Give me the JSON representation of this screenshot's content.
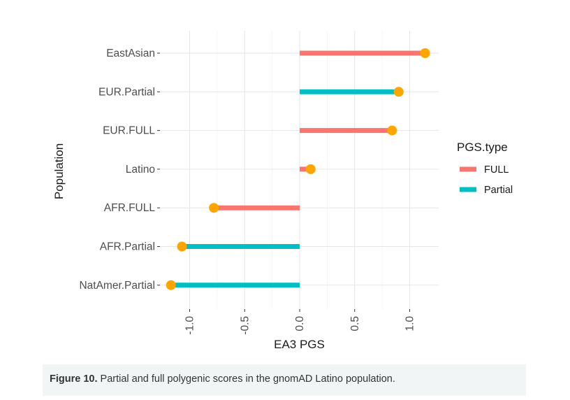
{
  "chart_data": {
    "type": "lollipop",
    "xlabel": "EA3 PGS",
    "ylabel": "Population",
    "xlim": [
      -1.25,
      1.25
    ],
    "xticks": [
      -1.0,
      -0.5,
      0.0,
      0.5,
      1.0
    ],
    "xtick_labels": [
      "-1.0",
      "-0.5",
      "0.0",
      "0.5",
      "1.0"
    ],
    "grid": true,
    "legend": {
      "title": "PGS.type",
      "placement": "right",
      "entries": [
        {
          "name": "FULL",
          "color": "#f8766d"
        },
        {
          "name": "Partial",
          "color": "#00bfc4"
        }
      ]
    },
    "point_color": "#ffa500",
    "categories": [
      "EastAsian",
      "EUR.Partial",
      "EUR.FULL",
      "Latino",
      "AFR.FULL",
      "AFR.Partial",
      "NatAmer.Partial"
    ],
    "values": [
      1.14,
      0.9,
      0.84,
      0.1,
      -0.78,
      -1.07,
      -1.17
    ],
    "pgs_type": [
      "FULL",
      "Partial",
      "FULL",
      "FULL",
      "FULL",
      "Partial",
      "Partial"
    ]
  },
  "caption": {
    "label": "Figure 10.",
    "text": " Partial and full polygenic scores in the gnomAD Latino population."
  }
}
